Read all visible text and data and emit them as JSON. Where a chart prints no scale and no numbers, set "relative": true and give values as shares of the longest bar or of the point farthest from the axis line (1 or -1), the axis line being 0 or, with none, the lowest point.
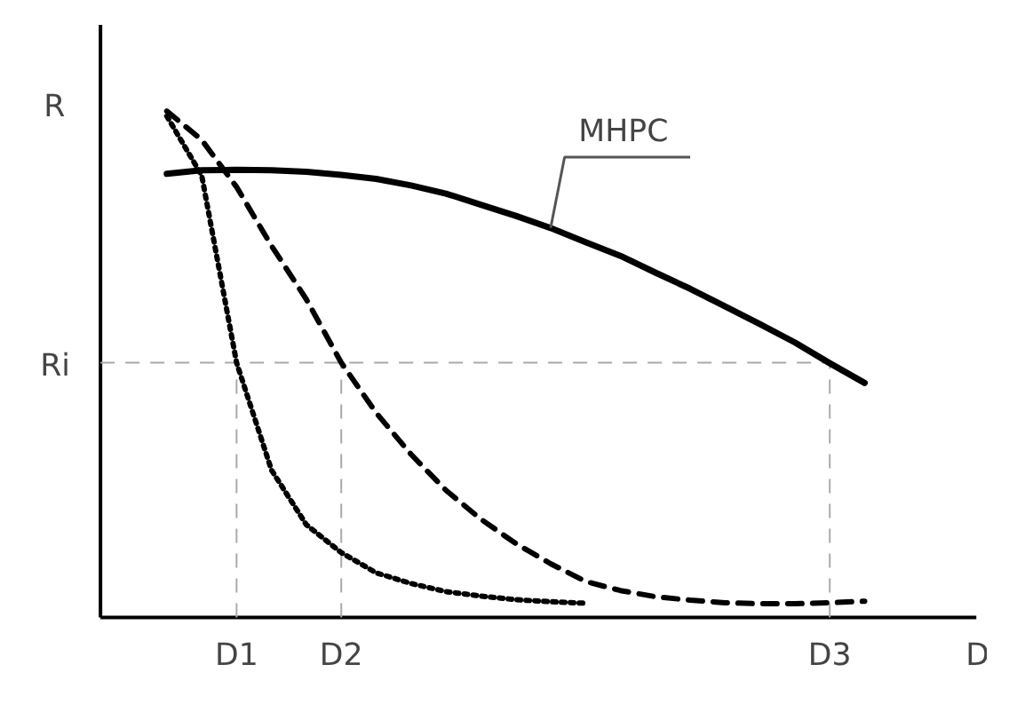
{
  "chart_data": {
    "type": "line",
    "relative": true,
    "xlabel": "D",
    "ylabel": "R",
    "grid": false,
    "categories": [
      null,
      null,
      null,
      "D1",
      null,
      null,
      "D2",
      null,
      null,
      null,
      null,
      null,
      null,
      null,
      null,
      null,
      null,
      null,
      null,
      null,
      "D3",
      null
    ],
    "ref_lines": [
      {
        "axis": "y",
        "value": 0.503,
        "label": "Ri",
        "color": "#aaaaaa",
        "line_style": "dashed"
      },
      {
        "axis": "x",
        "value": "D1",
        "color": "#aaaaaa",
        "line_style": "dashed"
      },
      {
        "axis": "x",
        "value": "D2",
        "color": "#aaaaaa",
        "line_style": "dashed"
      },
      {
        "axis": "x",
        "value": "D3",
        "color": "#aaaaaa",
        "line_style": "dashed"
      }
    ],
    "annotations": [
      "MHPC"
    ],
    "series": [
      {
        "color": "#000000",
        "line_style": "solid",
        "values": [
          null,
          0.876,
          0.883,
          0.884,
          0.883,
          0.88,
          0.874,
          0.866,
          0.853,
          0.837,
          0.815,
          0.793,
          0.769,
          0.741,
          0.714,
          0.681,
          0.649,
          0.614,
          0.579,
          0.543,
          0.502,
          0.463
        ]
      },
      {
        "color": "#000000",
        "line_style": "dashed",
        "values": [
          null,
          1,
          0.943,
          0.85,
          0.734,
          0.628,
          0.503,
          0.404,
          0.322,
          0.251,
          0.194,
          0.146,
          0.106,
          0.071,
          0.053,
          0.041,
          0.034,
          0.029,
          0.027,
          0.027,
          0.029,
          0.032
        ]
      },
      {
        "color": "#000000",
        "line_style": "dotted",
        "values": [
          null,
          0.99,
          0.873,
          0.503,
          0.291,
          0.183,
          0.128,
          0.088,
          0.067,
          0.051,
          0.042,
          0.035,
          0.031,
          0.028,
          null,
          null,
          null,
          null,
          null,
          null,
          null,
          null
        ]
      }
    ]
  }
}
